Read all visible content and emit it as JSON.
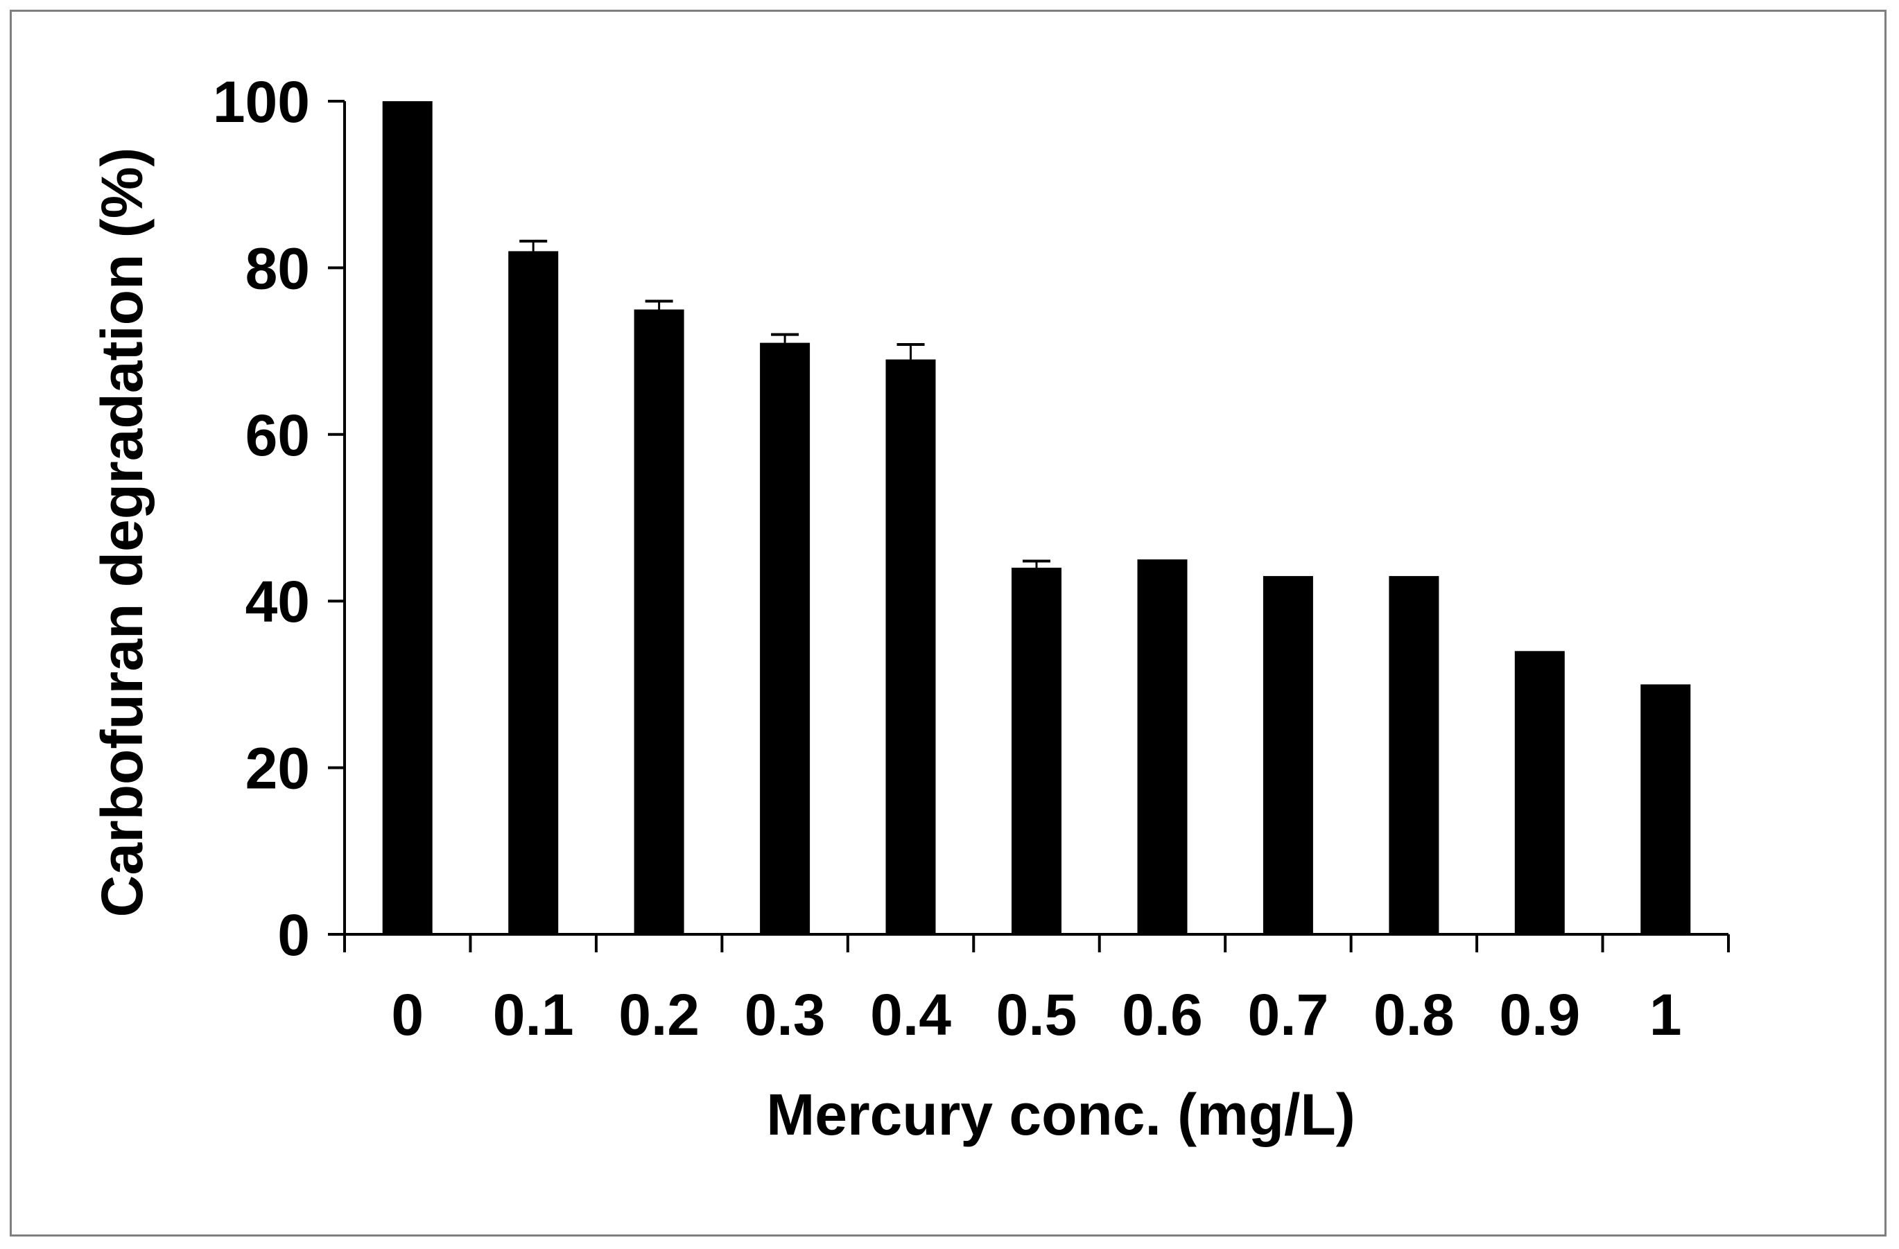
{
  "chart_data": {
    "type": "bar",
    "title": "",
    "xlabel": "Mercury conc. (mg/L)",
    "ylabel": "Carbofuran degradation (%)",
    "categories": [
      "0",
      "0.1",
      "0.2",
      "0.3",
      "0.4",
      "0.5",
      "0.6",
      "0.7",
      "0.8",
      "0.9",
      "1"
    ],
    "values": [
      100,
      82,
      75,
      71,
      69,
      44,
      45,
      43,
      43,
      34,
      30
    ],
    "error": [
      0,
      1.2,
      1.0,
      1.0,
      1.8,
      0.8,
      0,
      0,
      0,
      0,
      0
    ],
    "ylim": [
      0,
      100
    ],
    "yticks": [
      "0",
      "20",
      "40",
      "60",
      "80",
      "100"
    ],
    "grid": false,
    "legend": "none",
    "colors": {
      "bar": "#000000",
      "axis": "#000000",
      "frame": "#7f7f7f",
      "background": "#ffffff"
    }
  }
}
